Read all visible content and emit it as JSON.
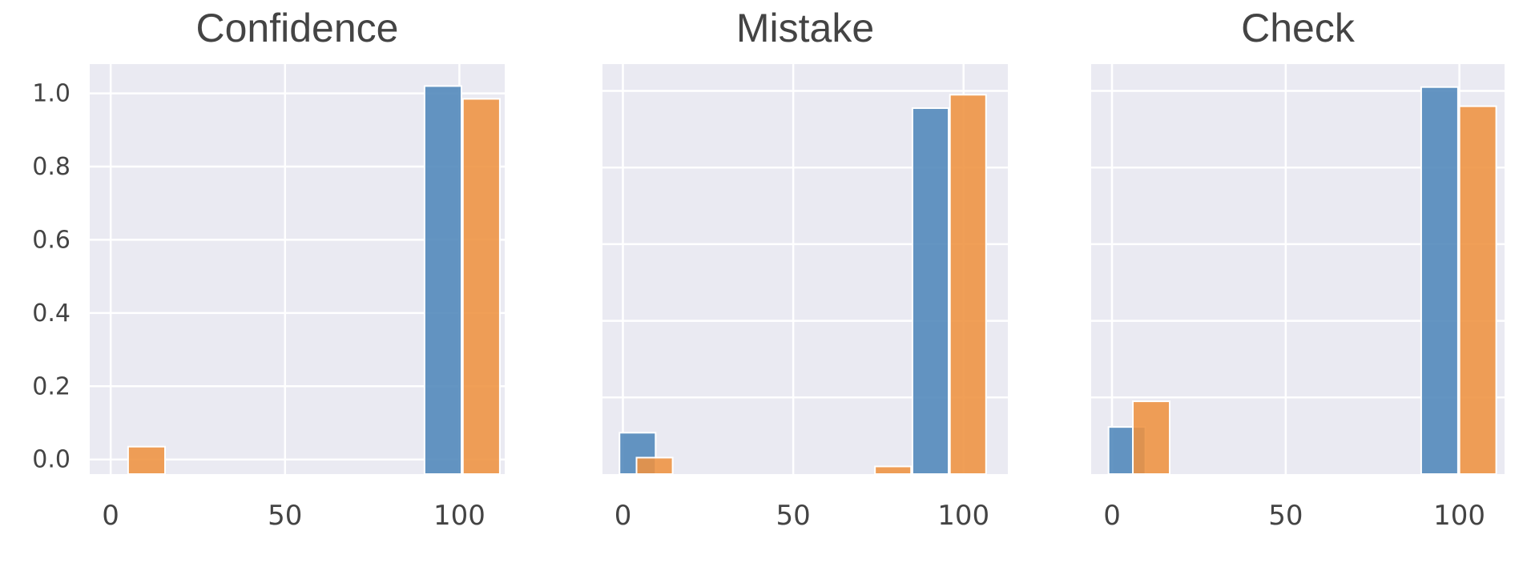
{
  "colors": {
    "series_a": "#4f86b9",
    "series_b": "#ee9240",
    "plot_bg": "#eaeaf2",
    "grid": "#ffffff"
  },
  "chart_data": [
    {
      "type": "bar",
      "title": "Confidence",
      "xticks": [
        "0",
        "50",
        "100"
      ],
      "yticks": [
        "0.0",
        "0.2",
        "0.4",
        "0.6",
        "0.8",
        "1.0"
      ],
      "ylim": [
        -0.04,
        1.08
      ],
      "xlim": [
        -6,
        113
      ],
      "bars": [
        {
          "x": 5,
          "series": 1,
          "value": 0.035
        },
        {
          "x": 90,
          "series": 0,
          "value": 1.02
        },
        {
          "x": 101,
          "series": 1,
          "value": 0.985
        }
      ]
    },
    {
      "type": "bar",
      "title": "Mistake",
      "xticks": [
        "0",
        "50",
        "100"
      ],
      "yticks": [],
      "ylim": [
        0,
        1.07
      ],
      "xlim": [
        -6,
        113
      ],
      "bars": [
        {
          "x": -1,
          "series": 0,
          "value": 0.108
        },
        {
          "x": 4,
          "series": 1,
          "value": 0.043
        },
        {
          "x": 74,
          "series": 1,
          "value": 0.02
        },
        {
          "x": 85,
          "series": 0,
          "value": 0.955
        },
        {
          "x": 96,
          "series": 1,
          "value": 0.99
        }
      ]
    },
    {
      "type": "bar",
      "title": "Check",
      "xticks": [
        "0",
        "50",
        "100"
      ],
      "yticks": [],
      "ylim": [
        0,
        1.07
      ],
      "xlim": [
        -6,
        113
      ],
      "bars": [
        {
          "x": -1,
          "series": 0,
          "value": 0.123
        },
        {
          "x": 6,
          "series": 1,
          "value": 0.19
        },
        {
          "x": 89,
          "series": 0,
          "value": 1.01
        },
        {
          "x": 100,
          "series": 1,
          "value": 0.96
        }
      ]
    }
  ]
}
